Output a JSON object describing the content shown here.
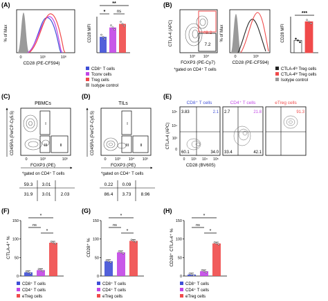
{
  "colors": {
    "cd8": "#3f4fd6",
    "cd4": "#c246e6",
    "treg": "#f04a4a",
    "isotype": "#9a9a9a",
    "ctla_lo": "#333333",
    "ctla_hi": "#f04a4a"
  },
  "panelA": {
    "letter": "(A)",
    "hist_ylabel": "% of Max",
    "hist_xlabel": "CD28 (PE-CF594)",
    "x_ticks": [
      "0",
      "10⁵",
      "10⁶"
    ],
    "bar_ylabel": "CD28 MFI",
    "sig_top": "**",
    "sig_left": "*",
    "sig_right": "ns",
    "legend": [
      "CD8⁺ T cells",
      "Tconv cells",
      "Treg cells",
      "Isotype control"
    ]
  },
  "panelB": {
    "letter": "(B)",
    "contour_ylabel": "CTLA-4 (APC)",
    "contour_xlabel": "FOXP3 (PE-Cy7)",
    "gate_top": "49.2",
    "gate_bottom": "7.2",
    "x_ticks": [
      "10³",
      "10⁴"
    ],
    "note": "*gated on CD4⁺ T cells",
    "hist_ylabel": "% of Max",
    "hist_xlabel": "CD28 (PE-CF594)",
    "hist_ticks": [
      "0",
      "10⁵"
    ],
    "bar_ylabel": "CD28 MFI",
    "sig": "***",
    "legend": [
      "CTLA-4ˡᵒ Treg cells",
      "CTLA-4ʰⁱ Treg cells",
      "Isotype control"
    ]
  },
  "panelC": {
    "letter": "(C)",
    "title": "PBMCs",
    "ylabel": "CD45RA (PerCP-Cy5.5)",
    "xlabel": "FOXP3 (PE)",
    "gates": [
      "I",
      "II",
      "III"
    ],
    "x_ticks": [
      "0",
      "10³",
      "10⁵"
    ],
    "note": "*gated on CD4⁺ T cells",
    "table": [
      [
        "59.3",
        "3.01",
        ""
      ],
      [
        "31.9",
        "3.01",
        "2.03"
      ]
    ]
  },
  "panelD": {
    "letter": "(D)",
    "title": "TILs",
    "ylabel": "CD45RA (PerCP-Cy5.5)",
    "xlabel": "FOXP3 (PE)",
    "gates": [
      "I",
      "II",
      "III"
    ],
    "x_ticks": [
      "0",
      "10³",
      "10⁴",
      "10⁵"
    ],
    "note": "*gated on CD4⁺ T cells",
    "table": [
      [
        "0.22",
        "0.09",
        ""
      ],
      [
        "86.4",
        "3.73",
        "8.96"
      ]
    ]
  },
  "panelE": {
    "letter": "(E)",
    "ylabel": "CTLA-4 (APC)",
    "xlabel": "CD28 (BV605)",
    "y_ticks": [
      "10⁵",
      "10⁴",
      "10³",
      "0"
    ],
    "x_ticks": [
      "0",
      "10³",
      "10⁴",
      "10⁵"
    ],
    "plots": [
      {
        "title": "CD8⁺ T cells",
        "ul": "3.83",
        "ur": "2.1",
        "ll": "60.1",
        "lr": "34.0"
      },
      {
        "title": "CD4⁺ T cells",
        "ul": "2.7",
        "ur": "21.8",
        "ll": "33.4",
        "lr": "42.1"
      },
      {
        "title": "eTreg cells",
        "ul": "",
        "ur": "91.3",
        "ll": "",
        "lr": ""
      }
    ]
  },
  "panelF": {
    "letter": "(F)",
    "ylabel": "CTLA-4⁺ %",
    "y_ticks": [
      "0",
      "50",
      "100",
      "150"
    ],
    "sig": [
      "*",
      "ns",
      "*"
    ],
    "legend": [
      "CD8⁺ T cells",
      "CD4⁺ T cells",
      "eTreg cells"
    ]
  },
  "panelG": {
    "letter": "(G)",
    "ylabel": "CD28⁺ %",
    "y_ticks": [
      "0",
      "50",
      "100",
      "150"
    ],
    "sig": [
      "*",
      "ns",
      "*"
    ],
    "legend": [
      "CD8⁺ T cells",
      "CD4⁺ T cells",
      "eTreg cells"
    ]
  },
  "panelH": {
    "letter": "(H)",
    "ylabel": "CD28⁺ CTLA-4⁺ %",
    "y_ticks": [
      "0",
      "50",
      "100",
      "150"
    ],
    "sig": [
      "*",
      "ns",
      "*"
    ],
    "legend": [
      "CD8⁺ T cells",
      "CD4⁺ T cells",
      "eTreg cells"
    ]
  },
  "chart_data": [
    {
      "type": "bar",
      "panel": "F",
      "categories": [
        "CD8⁺ T cells",
        "CD4⁺ T cells",
        "eTreg cells"
      ],
      "values": [
        10,
        16,
        90
      ],
      "ylim": [
        0,
        150
      ],
      "ylabel": "CTLA-4⁺ %"
    },
    {
      "type": "bar",
      "panel": "G",
      "categories": [
        "CD8⁺ T cells",
        "CD4⁺ T cells",
        "eTreg cells"
      ],
      "values": [
        40,
        64,
        95
      ],
      "ylim": [
        0,
        150
      ],
      "ylabel": "CD28⁺ %"
    },
    {
      "type": "bar",
      "panel": "H",
      "categories": [
        "CD8⁺ T cells",
        "CD4⁺ T cells",
        "eTreg cells"
      ],
      "values": [
        4,
        13,
        88
      ],
      "ylim": [
        0,
        150
      ],
      "ylabel": "CD28⁺ CTLA-4⁺ %"
    },
    {
      "type": "bar",
      "panel": "A",
      "categories": [
        "CD8⁺ T cells",
        "Tconv cells",
        "Treg cells"
      ],
      "values": [
        22,
        35,
        40
      ],
      "ylabel": "CD28 MFI"
    },
    {
      "type": "bar",
      "panel": "B",
      "categories": [
        "CTLA-4ˡᵒ Treg cells",
        "CTLA-4ʰⁱ Treg cells"
      ],
      "values": [
        17,
        43
      ],
      "ylabel": "CD28 MFI"
    }
  ]
}
